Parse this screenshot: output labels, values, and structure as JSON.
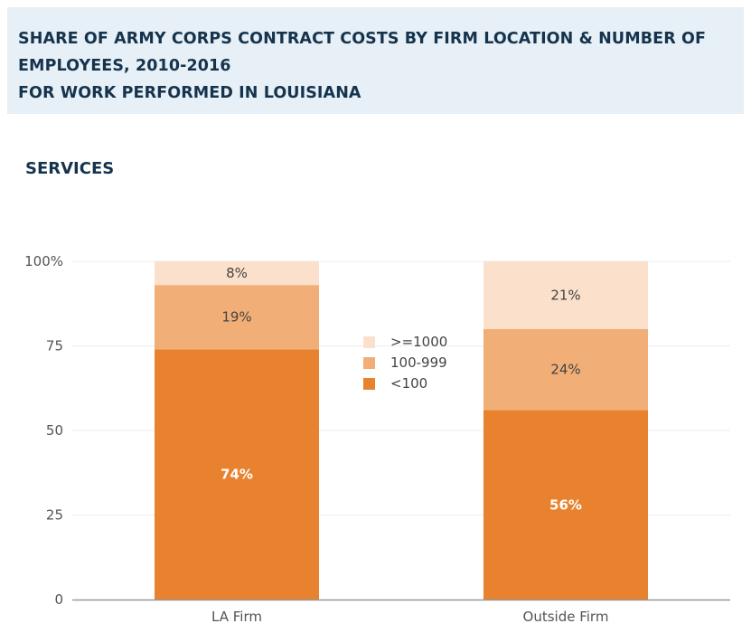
{
  "header": {
    "title_line1": "SHARE OF ARMY CORPS CONTRACT COSTS BY FIRM LOCATION & NUMBER OF",
    "title_line2": "EMPLOYEES, 2010-2016",
    "title_line3": "FOR WORK PERFORMED IN LOUISIANA"
  },
  "section": {
    "label": "SERVICES"
  },
  "colors": {
    "lt100": "#e8822f",
    "mid": "#f1ae77",
    "ge1000": "#fbe0cc",
    "header_bg": "#e6f0f6"
  },
  "chart_data": {
    "type": "bar",
    "stacked": true,
    "categories": [
      "LA Firm",
      "Outside Firm"
    ],
    "series": [
      {
        "name": "<100",
        "values": [
          74,
          56
        ],
        "labels": [
          "74%",
          "56%"
        ]
      },
      {
        "name": "100-999",
        "values": [
          19,
          24
        ],
        "labels": [
          "19%",
          "24%"
        ]
      },
      {
        "name": ">=1000",
        "values": [
          8,
          21
        ],
        "labels": [
          "8%",
          "21%"
        ]
      }
    ],
    "legend_order": [
      ">=1000",
      "100-999",
      "<100"
    ],
    "yticks": [
      "0",
      "25",
      "50",
      "75",
      "100%"
    ],
    "ylim": [
      0,
      100
    ],
    "grid": true,
    "legend_position": "center"
  }
}
